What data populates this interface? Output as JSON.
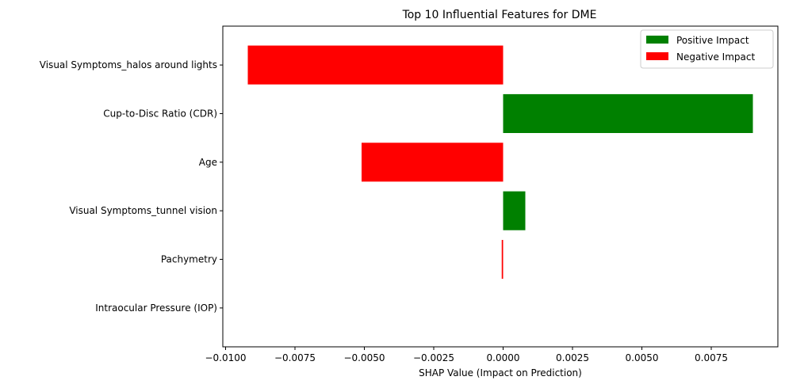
{
  "chart_data": {
    "type": "bar",
    "orientation": "horizontal",
    "title": "Top 10 Influential Features for DME",
    "xlabel": "SHAP Value (Impact on Prediction)",
    "ylabel": "",
    "xlim": [
      -0.0101,
      0.0099
    ],
    "xticks": [
      -0.01,
      -0.0075,
      -0.005,
      -0.0025,
      0.0,
      0.0025,
      0.005,
      0.0075
    ],
    "xtick_labels": [
      "−0.0100",
      "−0.0075",
      "−0.0050",
      "−0.0025",
      "0.0000",
      "0.0025",
      "0.0050",
      "0.0075"
    ],
    "categories": [
      "Visual Symptoms_halos around lights",
      "Cup-to-Disc Ratio (CDR)",
      "Age",
      "Visual Symptoms_tunnel vision",
      "Pachymetry",
      "Intraocular Pressure (IOP)"
    ],
    "values": [
      -0.0092,
      0.009,
      -0.0051,
      0.0008,
      -5e-05,
      0.0
    ],
    "grid": false,
    "legend": {
      "placement": "top-right",
      "entries": [
        {
          "label": "Positive Impact",
          "color": "#008000"
        },
        {
          "label": "Negative Impact",
          "color": "#ff0000"
        }
      ]
    },
    "colors": {
      "positive": "#008000",
      "negative": "#ff0000"
    }
  }
}
